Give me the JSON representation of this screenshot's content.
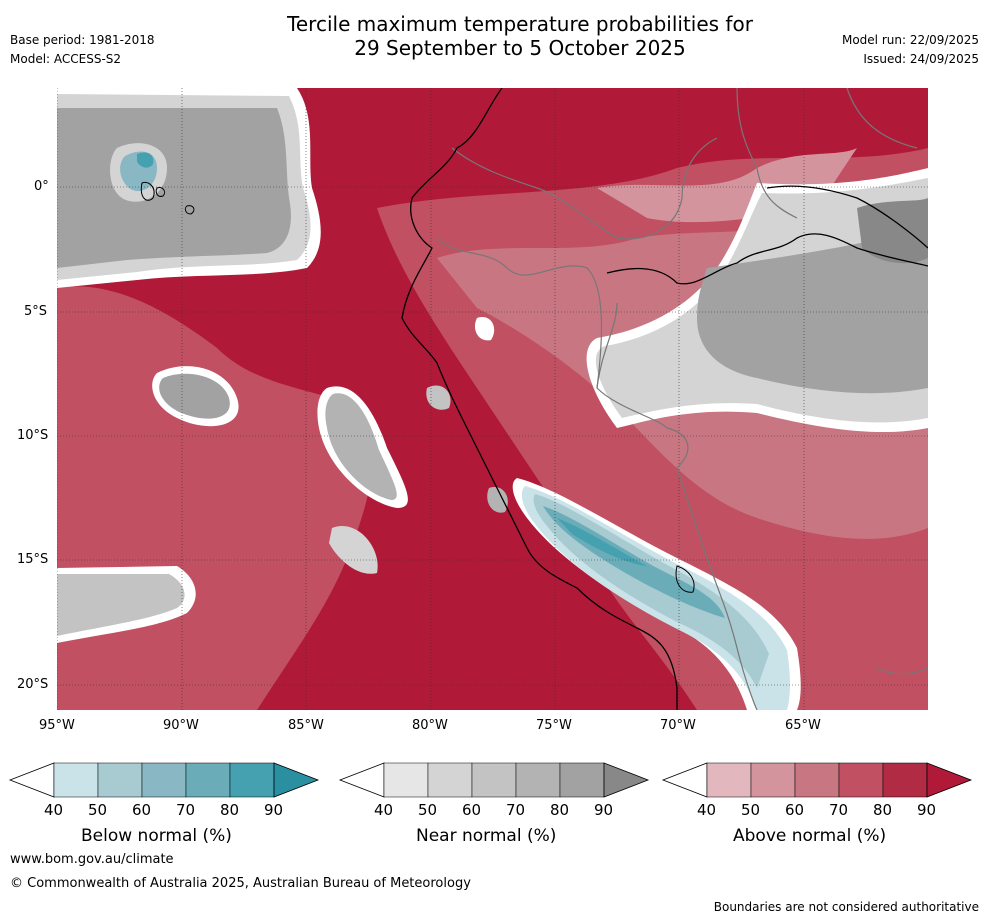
{
  "header": {
    "title_line1": "Tercile maximum temperature probabilities for",
    "title_line2": "29 September to 5 October 2025",
    "base_period": "Base period: 1981-2018",
    "model": "Model: ACCESS-S2",
    "model_run": "Model run: 22/09/2025",
    "issued": "Issued: 24/09/2025"
  },
  "map": {
    "lat_labels": [
      "0°",
      "5°S",
      "10°S",
      "15°S",
      "20°S"
    ],
    "lon_labels": [
      "95°W",
      "90°W",
      "85°W",
      "80°W",
      "75°W",
      "70°W",
      "65°W"
    ]
  },
  "legend": {
    "below": {
      "label": "Below normal (%)",
      "ticks": [
        "40",
        "50",
        "60",
        "70",
        "80",
        "90"
      ],
      "colors": [
        "#ffffff",
        "#cae3e9",
        "#a7cbd1",
        "#89b8c4",
        "#6aadb9",
        "#45a0b0",
        "#2b8fa2"
      ]
    },
    "near": {
      "label": "Near normal (%)",
      "ticks": [
        "40",
        "50",
        "60",
        "70",
        "80",
        "90"
      ],
      "colors": [
        "#ffffff",
        "#e6e6e6",
        "#d4d4d4",
        "#c3c3c3",
        "#b3b3b3",
        "#a2a2a2",
        "#888888"
      ]
    },
    "above": {
      "label": "Above normal (%)",
      "ticks": [
        "40",
        "50",
        "60",
        "70",
        "80",
        "90"
      ],
      "colors": [
        "#ffffff",
        "#e3b7be",
        "#d4949e",
        "#c97683",
        "#c05062",
        "#b12b44",
        "#b01a38"
      ]
    }
  },
  "footer": {
    "url": "www.bom.gov.au/climate",
    "copyright": "© Commonwealth of Australia 2025, Australian Bureau of Meteorology",
    "disclaimer": "Boundaries are not considered authoritative"
  }
}
